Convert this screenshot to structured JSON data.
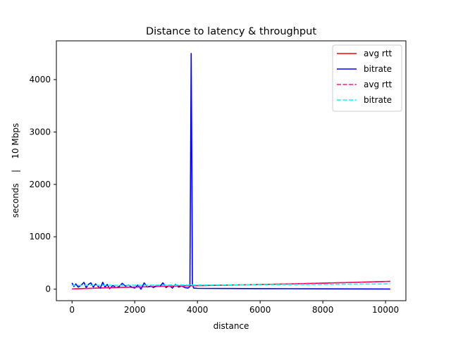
{
  "chart_data": {
    "type": "line",
    "title": "Distance to latency & throughput",
    "xlabel": "distance",
    "ylabel": "seconds    |    10 Mbps",
    "xlim": [
      -500,
      10650
    ],
    "ylim": [
      -220,
      4740
    ],
    "xticks": [
      0,
      2000,
      4000,
      6000,
      8000,
      10000
    ],
    "yticks": [
      0,
      1000,
      2000,
      3000,
      4000
    ],
    "grid": false,
    "legend_position": "top-right",
    "series": [
      {
        "name": "avg rtt",
        "color": "#ff0000",
        "dash": "solid",
        "x": [
          0,
          1000,
          2000,
          3000,
          4000,
          5000,
          6000,
          7000,
          8000,
          9000,
          10150
        ],
        "y": [
          5,
          25,
          40,
          55,
          68,
          78,
          88,
          100,
          115,
          130,
          148
        ]
      },
      {
        "name": "bitrate",
        "color": "#0000ff",
        "dash": "solid",
        "x": [
          0,
          60,
          120,
          200,
          300,
          380,
          450,
          520,
          600,
          680,
          750,
          820,
          900,
          980,
          1050,
          1120,
          1200,
          1300,
          1400,
          1500,
          1600,
          1700,
          1800,
          1900,
          2000,
          2100,
          2200,
          2300,
          2400,
          2500,
          2600,
          2700,
          2800,
          2900,
          3000,
          3100,
          3200,
          3300,
          3400,
          3500,
          3600,
          3700,
          3760,
          3800,
          3840,
          3880,
          4000,
          5000,
          6000,
          7000,
          8000,
          9000,
          10150
        ],
        "y": [
          120,
          50,
          100,
          40,
          80,
          130,
          30,
          90,
          120,
          40,
          100,
          60,
          20,
          130,
          40,
          90,
          10,
          70,
          30,
          50,
          110,
          60,
          80,
          40,
          20,
          80,
          0,
          120,
          40,
          60,
          30,
          70,
          50,
          120,
          30,
          70,
          20,
          90,
          40,
          60,
          30,
          20,
          50,
          4500,
          80,
          20,
          15,
          12,
          10,
          8,
          6,
          5,
          3
        ]
      },
      {
        "name": "avg rtt",
        "color": "#ff1493",
        "dash": "dashed",
        "x": [
          0,
          1000,
          2000,
          3000,
          4000,
          5000,
          6000,
          7000,
          8000,
          9000,
          10150
        ],
        "y": [
          5,
          25,
          40,
          55,
          68,
          78,
          88,
          100,
          115,
          130,
          148
        ]
      },
      {
        "name": "bitrate",
        "color": "#00ffff",
        "dash": "dashed",
        "x": [
          0,
          2000,
          4000,
          6000,
          8000,
          10150
        ],
        "y": [
          72,
          75,
          80,
          85,
          92,
          100
        ]
      }
    ]
  }
}
